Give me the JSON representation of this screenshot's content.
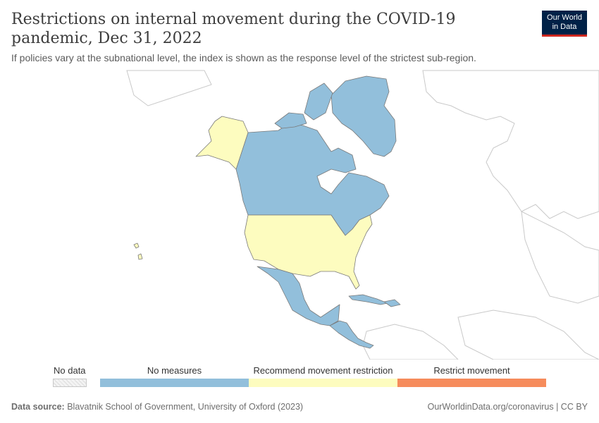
{
  "header": {
    "title": "Restrictions on internal movement during the COVID-19 pandemic, Dec 31, 2022",
    "subtitle": "If policies vary at the subnational level, the index is shown as the response level of the strictest sub-region.",
    "logo_line1": "Our World",
    "logo_line2": "in Data"
  },
  "map": {
    "region": "North America",
    "regions": [
      {
        "name": "Canada",
        "category": "No measures"
      },
      {
        "name": "Greenland",
        "category": "No measures"
      },
      {
        "name": "Mexico",
        "category": "No measures"
      },
      {
        "name": "Central America",
        "category": "No measures"
      },
      {
        "name": "Cuba",
        "category": "No measures"
      },
      {
        "name": "Hispaniola",
        "category": "No measures"
      },
      {
        "name": "United States",
        "category": "Recommend movement restriction"
      },
      {
        "name": "Alaska",
        "category": "Recommend movement restriction"
      }
    ]
  },
  "legend": {
    "no_data_label": "No data",
    "items": [
      {
        "label": "No measures",
        "color": "#92bfdb"
      },
      {
        "label": "Recommend movement restriction",
        "color": "#fdfcbf"
      },
      {
        "label": "Restrict movement",
        "color": "#f68c5c"
      }
    ]
  },
  "footer": {
    "source_label": "Data source:",
    "source_text": "Blavatnik School of Government, University of Oxford (2023)",
    "url": "OurWorldinData.org/coronavirus | CC BY"
  },
  "colors": {
    "no_measures": "#92bfdb",
    "recommend": "#fdfcbf",
    "restrict": "#f68c5c",
    "border": "#7a7a7a",
    "outline_land": "#ffffff"
  }
}
